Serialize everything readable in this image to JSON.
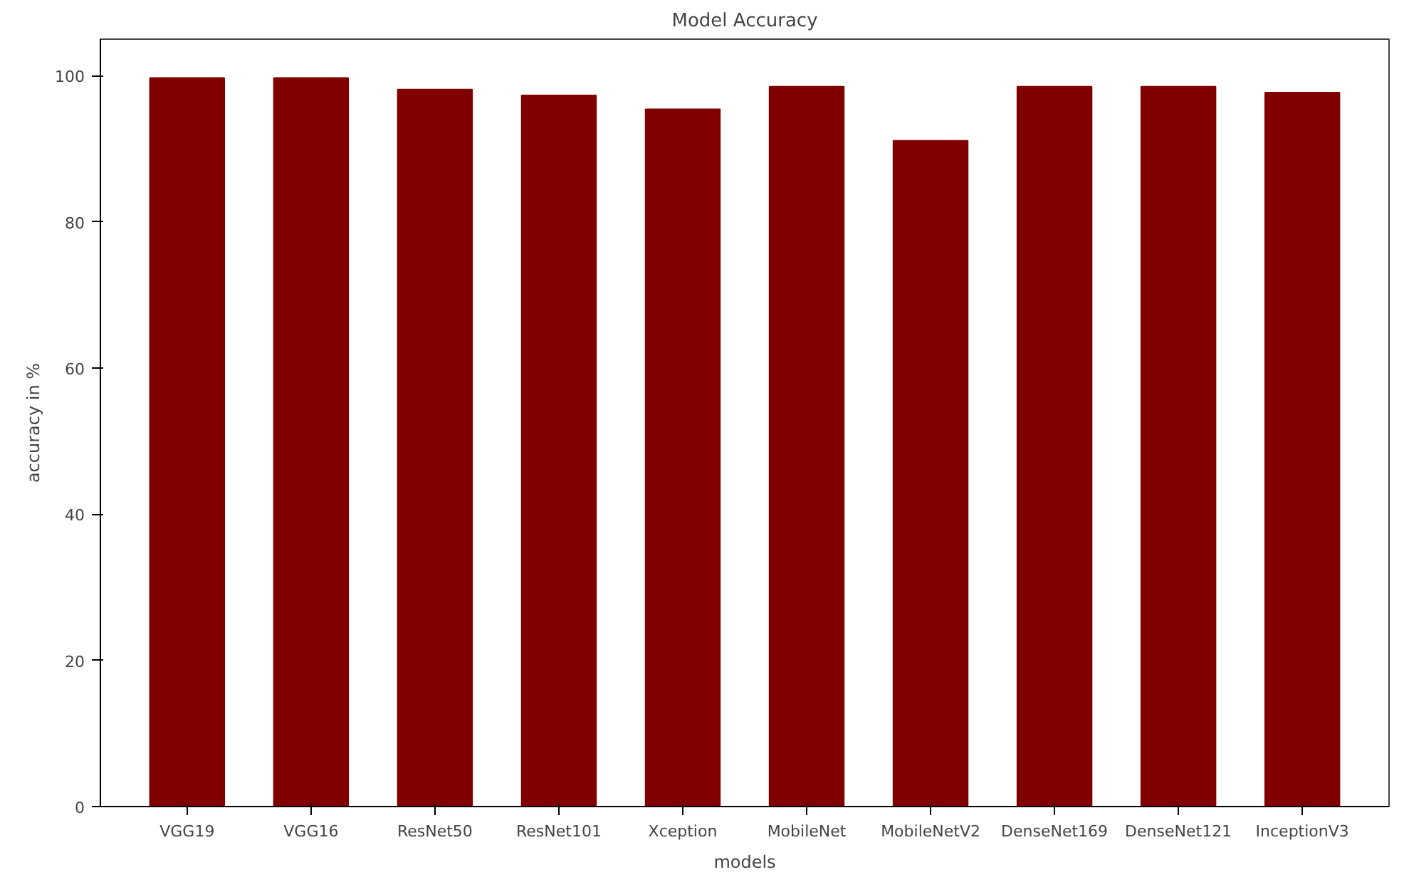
{
  "chart_data": {
    "type": "bar",
    "title": "Model Accuracy",
    "xlabel": "models",
    "ylabel": "accuracy in %",
    "categories": [
      "VGG19",
      "VGG16",
      "ResNet50",
      "ResNet101",
      "Xception",
      "MobileNet",
      "MobileNetV2",
      "DenseNet169",
      "DenseNet121",
      "InceptionV3"
    ],
    "values": [
      99.7,
      99.7,
      98.1,
      97.3,
      95.4,
      98.5,
      91.1,
      98.5,
      98.5,
      97.7
    ],
    "color": "#800000",
    "ylim": [
      0,
      105
    ],
    "yticks": [
      0,
      20,
      40,
      60,
      80,
      100
    ],
    "grid": false
  }
}
